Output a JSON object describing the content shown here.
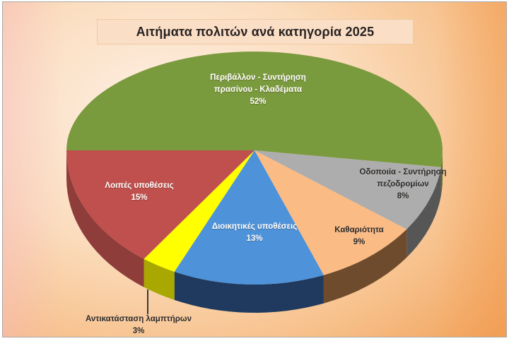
{
  "title": {
    "text": "Αιτήματα πολιτών ανά κατηγορία 2025"
  },
  "styles": {
    "title_bg": "#FBDEC6",
    "title_color": "#262220",
    "background_center": "#FDF0E5",
    "background_edge": "#F1A159"
  },
  "chart_data": {
    "type": "pie",
    "is_3d": true,
    "title": "Αιτήματα πολιτών ανά κατηγορία 2025",
    "start": "west",
    "direction": "clockwise",
    "legend": "none",
    "label_style": "category name + percent inside slices; 3% slice labeled outside bottom-left with leader line",
    "categories": [
      "Περιβάλλον - Συντήρηση πρασίνου - Κλαδέματα",
      "Οδοποιία - Συντήρηση πεζοδρομίων",
      "Καθαριότητα",
      "Διοικητικές υποθέσεις",
      "Αντικατάσταση λαμπτήρων",
      "Λοιπές υποθέσεις"
    ],
    "values": [
      52,
      8,
      9,
      13,
      3,
      15
    ],
    "slices": [
      {
        "label": "Περιβάλλον - Συντήρηση πρασίνου - Κλαδέματα",
        "value_pct": 52,
        "pct_label": "52%",
        "label_lines": [
          "Περιβάλλον - Συντήρηση",
          "πρασίνου - Κλαδέματα"
        ],
        "color": "#7A9A3E",
        "side_color": "#55702C",
        "text_color": "#FFFFFF"
      },
      {
        "label": "Οδοποιία - Συντήρηση πεζοδρομίων",
        "value_pct": 8,
        "pct_label": "8%",
        "label_lines": [
          "Οδοποιία - Συντήρηση",
          "πεζοδρομίων"
        ],
        "color": "#ADADAD",
        "side_color": "#565656",
        "text_color": "#2E2B28"
      },
      {
        "label": "Καθαριότητα",
        "value_pct": 9,
        "pct_label": "9%",
        "label_lines": [
          "Καθαριότητα"
        ],
        "color": "#FBBB85",
        "side_color": "#6F4B2D",
        "text_color": "#2E2B28"
      },
      {
        "label": "Διοικητικές υποθέσεις",
        "value_pct": 13,
        "pct_label": "13%",
        "label_lines": [
          "Διοικητικές υποθέσεις"
        ],
        "color": "#4E92D9",
        "side_color": "#1F3A5E",
        "text_color": "#FFFFFF"
      },
      {
        "label": "Αντικατάσταση λαμπτήρων",
        "value_pct": 3,
        "pct_label": "3%",
        "label_lines": [
          "Αντικατάσταση λαμπτήρων"
        ],
        "color": "#FFFF00",
        "side_color": "#A8A800",
        "text_color": "#2E2B28"
      },
      {
        "label": "Λοιπές υποθέσεις",
        "value_pct": 15,
        "pct_label": "15%",
        "label_lines": [
          "Λοιπές υποθέσεις"
        ],
        "color": "#C0504D",
        "side_color": "#8F3D3A",
        "text_color": "#FFFFFF"
      }
    ]
  }
}
